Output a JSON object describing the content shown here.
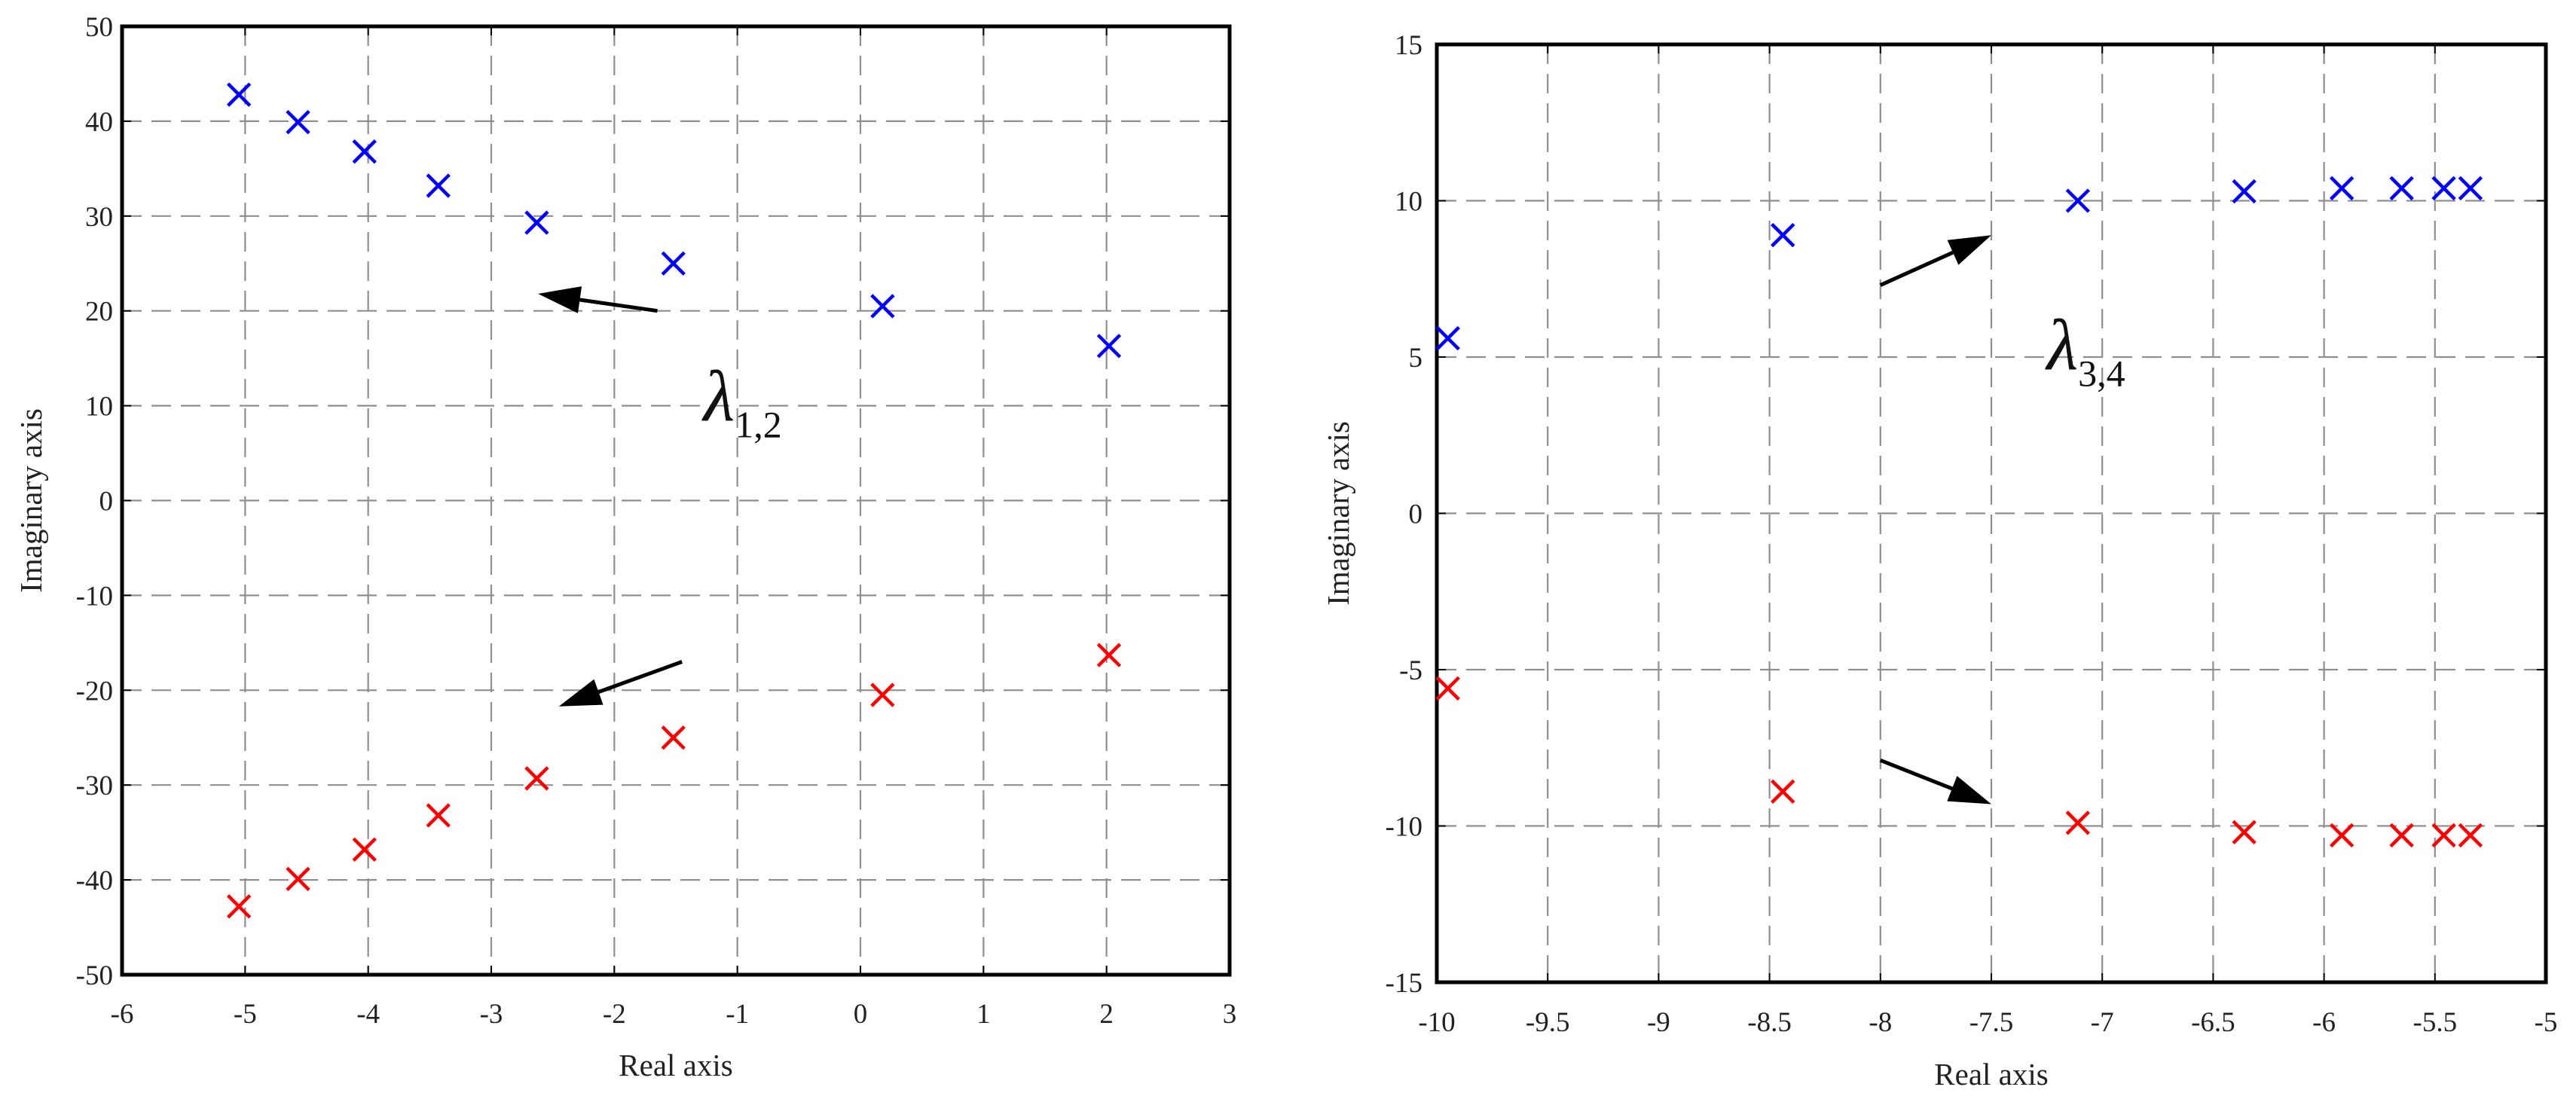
{
  "chart_data": [
    {
      "type": "scatter",
      "xlabel": "Real axis",
      "ylabel": "Imaginary axis",
      "xlim": [
        -6,
        3
      ],
      "ylim": [
        -50,
        50
      ],
      "xticks": [
        -6,
        -5,
        -4,
        -3,
        -2,
        -1,
        0,
        1,
        2,
        3
      ],
      "yticks": [
        -50,
        -40,
        -30,
        -20,
        -10,
        0,
        10,
        20,
        30,
        40,
        50
      ],
      "grid": true,
      "marker": "x",
      "annotation": {
        "symbol": "λ",
        "subscript": "1,2"
      },
      "series": [
        {
          "color": "#0000ff",
          "points": [
            [
              -5.05,
              42.8
            ],
            [
              -4.57,
              39.9
            ],
            [
              -4.03,
              36.8
            ],
            [
              -3.43,
              33.2
            ],
            [
              -2.63,
              29.3
            ],
            [
              -1.52,
              25.0
            ],
            [
              0.18,
              20.5
            ],
            [
              2.02,
              16.3
            ]
          ]
        },
        {
          "color": "#ff0000",
          "points": [
            [
              -5.05,
              -42.8
            ],
            [
              -4.57,
              -39.9
            ],
            [
              -4.03,
              -36.8
            ],
            [
              -3.43,
              -33.2
            ],
            [
              -2.63,
              -29.3
            ],
            [
              -1.52,
              -25.0
            ],
            [
              0.18,
              -20.5
            ],
            [
              2.02,
              -16.3
            ]
          ]
        }
      ]
    },
    {
      "type": "scatter",
      "xlabel": "Real axis",
      "ylabel": "Imaginary axis",
      "xlim": [
        -10,
        -5
      ],
      "ylim": [
        -15,
        15
      ],
      "xticks": [
        -10,
        -9.5,
        -9,
        -8.5,
        -8,
        -7.5,
        -7,
        -6.5,
        -6,
        -5.5,
        -5
      ],
      "yticks": [
        -15,
        -10,
        -5,
        0,
        5,
        10,
        15
      ],
      "grid": true,
      "marker": "x",
      "annotation": {
        "symbol": "λ",
        "subscript": "3,4"
      },
      "series": [
        {
          "color": "#0000ff",
          "points": [
            [
              -9.95,
              5.6
            ],
            [
              -8.44,
              8.9
            ],
            [
              -7.11,
              10.0
            ],
            [
              -6.36,
              10.3
            ],
            [
              -5.92,
              10.4
            ],
            [
              -5.65,
              10.4
            ],
            [
              -5.46,
              10.4
            ],
            [
              -5.34,
              10.4
            ]
          ]
        },
        {
          "color": "#ff0000",
          "points": [
            [
              -9.95,
              -5.6
            ],
            [
              -8.44,
              -8.9
            ],
            [
              -7.11,
              -9.9
            ],
            [
              -6.36,
              -10.2
            ],
            [
              -5.92,
              -10.3
            ],
            [
              -5.65,
              -10.3
            ],
            [
              -5.46,
              -10.3
            ],
            [
              -5.34,
              -10.3
            ]
          ]
        }
      ]
    }
  ]
}
